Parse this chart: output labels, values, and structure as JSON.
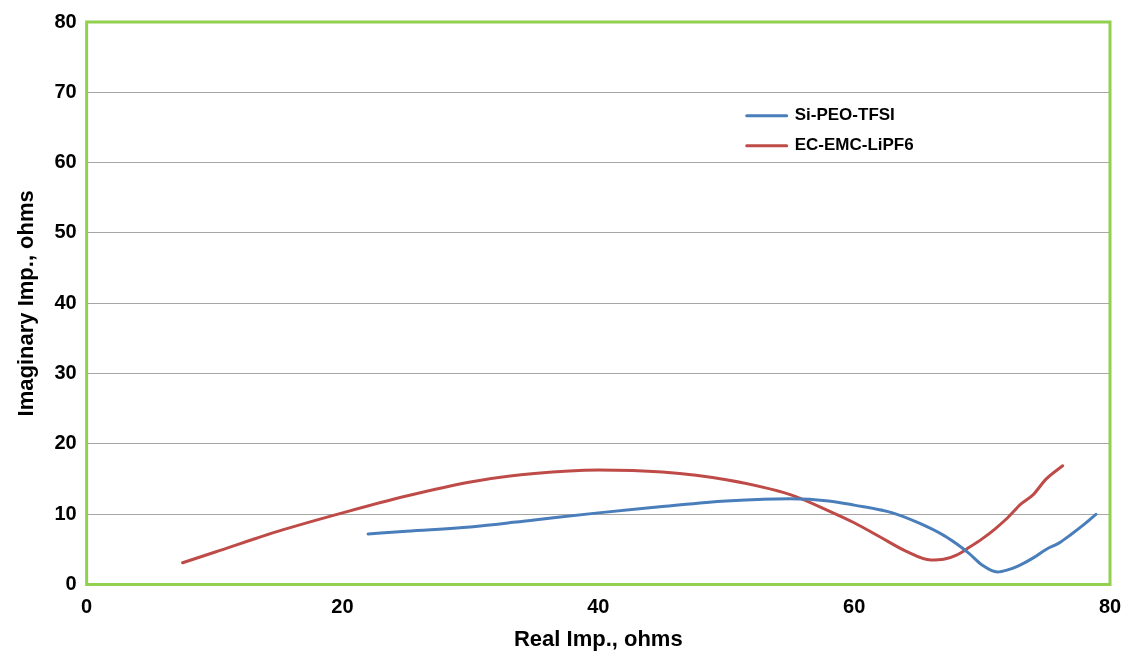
{
  "chart_data": {
    "type": "line",
    "xlabel": "Real Imp., ohms",
    "ylabel": "Imaginary Imp., ohms",
    "xlim": [
      0,
      80
    ],
    "xticks": [
      0,
      20,
      40,
      60,
      80
    ],
    "ylim": [
      0,
      80
    ],
    "yticks": [
      0,
      10,
      20,
      30,
      40,
      50,
      60,
      70,
      80
    ],
    "grid": "y",
    "legend": "top right",
    "marker": "none",
    "line_style": "solid",
    "series": [
      {
        "name": "Si-PEO-TFSI",
        "color": "#4a7ebb",
        "x": [
          22,
          25,
          30,
          35,
          40,
          45,
          50,
          55,
          58,
          60,
          63,
          65,
          67,
          68,
          69,
          70,
          71.2,
          72,
          73,
          74,
          75,
          76,
          77,
          78,
          78.9
        ],
        "values": [
          7.2,
          7.6,
          8.2,
          9.2,
          10.2,
          11.1,
          11.9,
          12.2,
          11.9,
          11.3,
          10.2,
          8.8,
          7,
          5.8,
          4.4,
          2.8,
          1.8,
          2.1,
          2.8,
          3.8,
          5,
          5.9,
          7.2,
          8.6,
          10
        ]
      },
      {
        "name": "EC-EMC-LiPF6",
        "color": "#be4b48",
        "x": [
          7.5,
          10,
          15,
          20,
          25,
          30,
          35,
          40,
          45,
          50,
          55,
          58,
          60,
          62,
          64,
          66,
          67,
          68,
          69,
          70,
          71,
          72,
          73,
          74,
          75,
          76.3
        ],
        "values": [
          3.1,
          4.6,
          7.6,
          10.2,
          12.6,
          14.6,
          15.8,
          16.3,
          16,
          14.9,
          12.8,
          10.5,
          8.8,
          6.8,
          4.8,
          3.5,
          3.6,
          4.2,
          5.3,
          6.5,
          7.9,
          9.5,
          11.4,
          12.8,
          15,
          16.9
        ]
      }
    ]
  }
}
